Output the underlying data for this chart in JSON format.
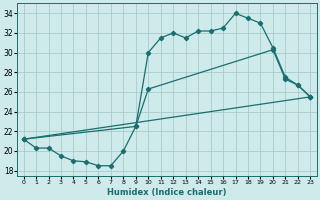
{
  "xlabel": "Humidex (Indice chaleur)",
  "bg_color": "#ceeaea",
  "grid_color": "#a8cccc",
  "line_color": "#1a6e6e",
  "xlim": [
    -0.5,
    23.5
  ],
  "ylim": [
    17.5,
    35.0
  ],
  "xticks": [
    0,
    1,
    2,
    3,
    4,
    5,
    6,
    7,
    8,
    9,
    10,
    11,
    12,
    13,
    14,
    15,
    16,
    17,
    18,
    19,
    20,
    21,
    22,
    23
  ],
  "yticks": [
    18,
    20,
    22,
    24,
    26,
    28,
    30,
    32,
    34
  ],
  "series1_x": [
    0,
    1,
    2,
    3,
    4,
    5,
    6,
    7,
    8,
    9,
    10,
    11,
    12,
    13,
    14,
    15,
    16,
    17,
    18,
    19,
    20,
    21,
    22,
    23
  ],
  "series1_y": [
    21.2,
    20.3,
    20.3,
    19.5,
    19.0,
    18.9,
    18.5,
    18.5,
    20.0,
    22.5,
    30.0,
    31.5,
    32.0,
    31.5,
    32.2,
    32.2,
    32.5,
    34.0,
    33.5,
    33.0,
    30.5,
    27.5,
    26.7,
    25.5
  ],
  "series2_x": [
    0,
    23
  ],
  "series2_y": [
    21.2,
    25.5
  ],
  "series3_x": [
    0,
    9,
    10,
    20,
    21,
    22,
    23
  ],
  "series3_y": [
    21.2,
    22.5,
    26.3,
    30.3,
    27.3,
    26.7,
    25.5
  ]
}
